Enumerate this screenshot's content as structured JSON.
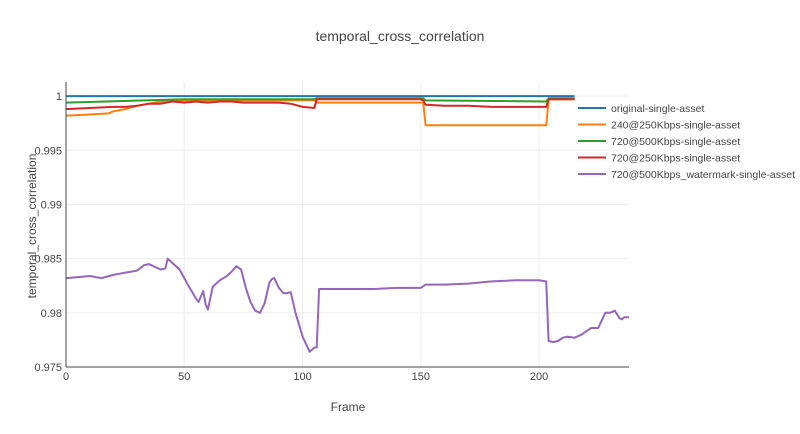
{
  "chart_data": {
    "type": "line",
    "title": "temporal_cross_correlation",
    "xlabel": "Frame",
    "ylabel": "temporal_cross_correlation",
    "xlim": [
      0,
      238
    ],
    "ylim": [
      0.975,
      1.0013
    ],
    "xticks": [
      0,
      50,
      100,
      150,
      200
    ],
    "yticks": [
      0.975,
      0.98,
      0.985,
      0.99,
      0.995,
      1
    ],
    "ytick_labels": [
      "0.975",
      "0.98",
      "0.985",
      "0.99",
      "0.995",
      "1"
    ],
    "grid": true,
    "legend_position": "top-right",
    "series": [
      {
        "name": "original-single-asset",
        "color": "#1f77b4",
        "x": [
          0,
          215
        ],
        "y": [
          1.0,
          1.0
        ]
      },
      {
        "name": "240@250Kbps-single-asset",
        "color": "#ff7f0e",
        "x": [
          0,
          10,
          18,
          20,
          25,
          30,
          35,
          40,
          50,
          60,
          70,
          80,
          90,
          100,
          105,
          106,
          110,
          120,
          130,
          140,
          150,
          151,
          152,
          160,
          170,
          180,
          190,
          200,
          203,
          204,
          210,
          215
        ],
        "y": [
          0.9982,
          0.9983,
          0.9984,
          0.9986,
          0.9988,
          0.9991,
          0.9993,
          0.9995,
          0.9996,
          0.9996,
          0.9996,
          0.9996,
          0.9996,
          0.9996,
          0.9996,
          0.9994,
          0.9994,
          0.9994,
          0.9994,
          0.9994,
          0.9994,
          0.9994,
          0.9973,
          0.9973,
          0.9973,
          0.9973,
          0.9973,
          0.9973,
          0.9973,
          0.9997,
          0.9997,
          0.9997
        ]
      },
      {
        "name": "720@500Kbps-single-asset",
        "color": "#2ca02c",
        "x": [
          0,
          50,
          105,
          106,
          150,
          151,
          152,
          203,
          204,
          215
        ],
        "y": [
          0.9994,
          0.9997,
          0.9997,
          0.9998,
          0.9998,
          0.9998,
          0.9996,
          0.9995,
          0.9998,
          0.9998
        ]
      },
      {
        "name": "720@250Kbps-single-asset",
        "color": "#d62728",
        "x": [
          0,
          10,
          20,
          25,
          30,
          35,
          40,
          45,
          50,
          55,
          60,
          65,
          70,
          75,
          80,
          90,
          95,
          100,
          105,
          106,
          110,
          120,
          130,
          140,
          150,
          151,
          152,
          160,
          170,
          180,
          190,
          200,
          203,
          204,
          210,
          215
        ],
        "y": [
          0.9988,
          0.9989,
          0.999,
          0.999,
          0.9991,
          0.9993,
          0.9993,
          0.9995,
          0.9994,
          0.9995,
          0.9994,
          0.9995,
          0.9995,
          0.9994,
          0.9994,
          0.9994,
          0.9993,
          0.999,
          0.9989,
          0.9997,
          0.9997,
          0.9997,
          0.9997,
          0.9997,
          0.9997,
          0.9996,
          0.9992,
          0.9991,
          0.9991,
          0.999,
          0.999,
          0.999,
          0.999,
          0.9997,
          0.9997,
          0.9997
        ]
      },
      {
        "name": "720@500Kbps_watermark-single-asset",
        "color": "#9467bd",
        "x": [
          0,
          5,
          10,
          15,
          20,
          25,
          30,
          33,
          35,
          37,
          40,
          42,
          43,
          45,
          48,
          50,
          52,
          55,
          56,
          57,
          58,
          59,
          60,
          62,
          65,
          68,
          70,
          72,
          74,
          76,
          78,
          80,
          82,
          84,
          86,
          87,
          88,
          90,
          92,
          93,
          95,
          97,
          100,
          103,
          105,
          106,
          107,
          110,
          120,
          130,
          140,
          150,
          152,
          160,
          170,
          180,
          190,
          200,
          203,
          204,
          206,
          208,
          210,
          212,
          215,
          218,
          220,
          222,
          225,
          228,
          230,
          232,
          234,
          235,
          236,
          238
        ],
        "y": [
          0.9832,
          0.9833,
          0.9834,
          0.9832,
          0.9835,
          0.9837,
          0.9839,
          0.9844,
          0.9845,
          0.9843,
          0.984,
          0.9841,
          0.985,
          0.9846,
          0.984,
          0.9832,
          0.9824,
          0.9813,
          0.981,
          0.9815,
          0.982,
          0.9808,
          0.9803,
          0.9824,
          0.983,
          0.9834,
          0.9838,
          0.9843,
          0.984,
          0.9823,
          0.981,
          0.9802,
          0.98,
          0.9809,
          0.9828,
          0.9831,
          0.9832,
          0.9823,
          0.9818,
          0.9818,
          0.9819,
          0.98,
          0.9778,
          0.9764,
          0.9768,
          0.9768,
          0.9822,
          0.9822,
          0.9822,
          0.9822,
          0.9823,
          0.9823,
          0.9826,
          0.9826,
          0.9827,
          0.9829,
          0.983,
          0.983,
          0.9829,
          0.9774,
          0.9773,
          0.9774,
          0.9777,
          0.9778,
          0.9777,
          0.978,
          0.9783,
          0.9786,
          0.9786,
          0.98,
          0.98,
          0.9802,
          0.9795,
          0.9794,
          0.9796,
          0.9796
        ]
      }
    ]
  }
}
